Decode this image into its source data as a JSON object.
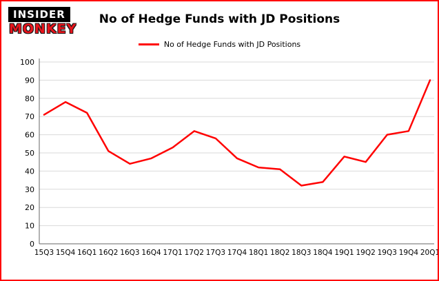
{
  "branding": {
    "logo_top": "INSIDER",
    "logo_bottom": "MONKEY"
  },
  "header": {
    "title": "No of Hedge Funds with JD Positions"
  },
  "legend": {
    "label": "No of Hedge Funds with JD Positions",
    "color": "#ff0000"
  },
  "colors": {
    "frame_border": "#ff0000",
    "line": "#ff0000",
    "gridline": "#d9d9d9",
    "axis": "#666666",
    "text": "#000000"
  },
  "chart_data": {
    "type": "line",
    "title": "No of Hedge Funds with JD Positions",
    "categories": [
      "15Q3",
      "15Q4",
      "16Q1",
      "16Q2",
      "16Q3",
      "16Q4",
      "17Q1",
      "17Q2",
      "17Q3",
      "17Q4",
      "18Q1",
      "18Q2",
      "18Q3",
      "18Q4",
      "19Q1",
      "19Q2",
      "19Q3",
      "19Q4",
      "20Q1"
    ],
    "values": [
      71,
      78,
      72,
      51,
      44,
      47,
      53,
      62,
      58,
      47,
      42,
      41,
      32,
      34,
      48,
      45,
      60,
      62,
      90
    ],
    "xlabel": "",
    "ylabel": "",
    "ylim": [
      0,
      100
    ],
    "ytick_interval": 10,
    "grid": "horizontal",
    "legend_position": "top",
    "line_color": "#ff0000"
  }
}
